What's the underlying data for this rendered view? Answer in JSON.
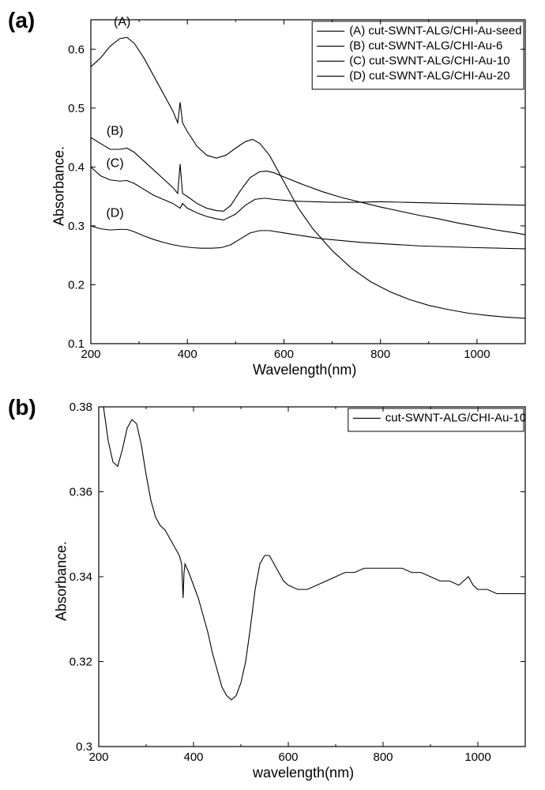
{
  "panel_a": {
    "label": "(a)",
    "type": "line",
    "xlabel": "Wavelength(nm)",
    "ylabel": "Absorbance.",
    "xlim": [
      200,
      1100
    ],
    "ylim": [
      0.1,
      0.65
    ],
    "xticks": [
      200,
      400,
      600,
      800,
      1000
    ],
    "yticks": [
      0.1,
      0.2,
      0.3,
      0.4,
      0.5,
      0.6
    ],
    "background_color": "#ffffff",
    "line_color": "#000000",
    "line_width": 1.1,
    "legend": {
      "position": "top-right",
      "items": [
        "(A) cut-SWNT-ALG/CHI-Au-seed",
        "(B) cut-SWNT-ALG/CHI-Au-6",
        "(C) cut-SWNT-ALG/CHI-Au-10",
        "(D) cut-SWNT-ALG/CHI-Au-20"
      ]
    },
    "series": [
      {
        "label": "(A)",
        "label_x": 265,
        "label_y": 0.64,
        "data": [
          [
            200,
            0.57
          ],
          [
            220,
            0.585
          ],
          [
            240,
            0.605
          ],
          [
            260,
            0.618
          ],
          [
            275,
            0.62
          ],
          [
            290,
            0.61
          ],
          [
            310,
            0.585
          ],
          [
            330,
            0.555
          ],
          [
            350,
            0.525
          ],
          [
            370,
            0.495
          ],
          [
            380,
            0.475
          ],
          [
            385,
            0.51
          ],
          [
            390,
            0.475
          ],
          [
            400,
            0.46
          ],
          [
            420,
            0.435
          ],
          [
            440,
            0.42
          ],
          [
            460,
            0.415
          ],
          [
            480,
            0.42
          ],
          [
            500,
            0.432
          ],
          [
            520,
            0.443
          ],
          [
            535,
            0.447
          ],
          [
            550,
            0.44
          ],
          [
            570,
            0.42
          ],
          [
            600,
            0.375
          ],
          [
            630,
            0.33
          ],
          [
            660,
            0.295
          ],
          [
            700,
            0.258
          ],
          [
            740,
            0.228
          ],
          [
            780,
            0.205
          ],
          [
            820,
            0.188
          ],
          [
            860,
            0.175
          ],
          [
            900,
            0.165
          ],
          [
            940,
            0.158
          ],
          [
            980,
            0.152
          ],
          [
            1020,
            0.148
          ],
          [
            1060,
            0.145
          ],
          [
            1100,
            0.143
          ]
        ]
      },
      {
        "label": "(B)",
        "label_x": 250,
        "label_y": 0.455,
        "data": [
          [
            200,
            0.45
          ],
          [
            220,
            0.44
          ],
          [
            240,
            0.43
          ],
          [
            260,
            0.43
          ],
          [
            275,
            0.432
          ],
          [
            290,
            0.425
          ],
          [
            310,
            0.41
          ],
          [
            330,
            0.395
          ],
          [
            350,
            0.38
          ],
          [
            370,
            0.365
          ],
          [
            380,
            0.355
          ],
          [
            385,
            0.405
          ],
          [
            390,
            0.355
          ],
          [
            400,
            0.35
          ],
          [
            420,
            0.338
          ],
          [
            440,
            0.33
          ],
          [
            460,
            0.326
          ],
          [
            475,
            0.325
          ],
          [
            490,
            0.335
          ],
          [
            510,
            0.36
          ],
          [
            530,
            0.382
          ],
          [
            550,
            0.392
          ],
          [
            565,
            0.393
          ],
          [
            580,
            0.39
          ],
          [
            600,
            0.383
          ],
          [
            640,
            0.37
          ],
          [
            680,
            0.358
          ],
          [
            720,
            0.348
          ],
          [
            760,
            0.34
          ],
          [
            800,
            0.332
          ],
          [
            840,
            0.325
          ],
          [
            880,
            0.318
          ],
          [
            920,
            0.312
          ],
          [
            960,
            0.305
          ],
          [
            1000,
            0.299
          ],
          [
            1040,
            0.293
          ],
          [
            1080,
            0.288
          ],
          [
            1100,
            0.285
          ]
        ]
      },
      {
        "label": "(C)",
        "label_x": 250,
        "label_y": 0.4,
        "data": [
          [
            200,
            0.4
          ],
          [
            220,
            0.385
          ],
          [
            240,
            0.378
          ],
          [
            260,
            0.376
          ],
          [
            275,
            0.377
          ],
          [
            290,
            0.372
          ],
          [
            310,
            0.362
          ],
          [
            330,
            0.352
          ],
          [
            350,
            0.345
          ],
          [
            370,
            0.338
          ],
          [
            385,
            0.33
          ],
          [
            390,
            0.338
          ],
          [
            400,
            0.33
          ],
          [
            420,
            0.322
          ],
          [
            440,
            0.316
          ],
          [
            460,
            0.312
          ],
          [
            475,
            0.31
          ],
          [
            500,
            0.32
          ],
          [
            520,
            0.335
          ],
          [
            540,
            0.345
          ],
          [
            560,
            0.347
          ],
          [
            580,
            0.345
          ],
          [
            620,
            0.342
          ],
          [
            660,
            0.341
          ],
          [
            700,
            0.34
          ],
          [
            750,
            0.34
          ],
          [
            800,
            0.341
          ],
          [
            850,
            0.34
          ],
          [
            900,
            0.339
          ],
          [
            950,
            0.338
          ],
          [
            1000,
            0.337
          ],
          [
            1050,
            0.336
          ],
          [
            1100,
            0.335
          ]
        ]
      },
      {
        "label": "(D)",
        "label_x": 250,
        "label_y": 0.315,
        "data": [
          [
            200,
            0.3
          ],
          [
            220,
            0.295
          ],
          [
            240,
            0.293
          ],
          [
            260,
            0.294
          ],
          [
            275,
            0.294
          ],
          [
            290,
            0.29
          ],
          [
            310,
            0.283
          ],
          [
            330,
            0.277
          ],
          [
            350,
            0.272
          ],
          [
            370,
            0.268
          ],
          [
            390,
            0.265
          ],
          [
            410,
            0.263
          ],
          [
            430,
            0.262
          ],
          [
            450,
            0.262
          ],
          [
            470,
            0.263
          ],
          [
            490,
            0.268
          ],
          [
            510,
            0.278
          ],
          [
            530,
            0.288
          ],
          [
            550,
            0.292
          ],
          [
            570,
            0.292
          ],
          [
            600,
            0.288
          ],
          [
            640,
            0.283
          ],
          [
            680,
            0.278
          ],
          [
            720,
            0.275
          ],
          [
            760,
            0.272
          ],
          [
            800,
            0.27
          ],
          [
            840,
            0.268
          ],
          [
            880,
            0.266
          ],
          [
            920,
            0.265
          ],
          [
            960,
            0.264
          ],
          [
            1000,
            0.263
          ],
          [
            1050,
            0.262
          ],
          [
            1100,
            0.261
          ]
        ]
      }
    ]
  },
  "panel_b": {
    "label": "(b)",
    "type": "line",
    "xlabel": "wavelength(nm)",
    "ylabel": "Absorbance.",
    "xlim": [
      200,
      1100
    ],
    "ylim": [
      0.3,
      0.38
    ],
    "xticks": [
      200,
      400,
      600,
      800,
      1000
    ],
    "yticks": [
      0.3,
      0.32,
      0.34,
      0.36,
      0.38
    ],
    "background_color": "#ffffff",
    "line_color": "#000000",
    "line_width": 1.1,
    "legend": {
      "position": "top-right",
      "items": [
        "cut-SWNT-ALG/CHI-Au-10"
      ]
    },
    "series": [
      {
        "data": [
          [
            200,
            0.4
          ],
          [
            210,
            0.38
          ],
          [
            220,
            0.372
          ],
          [
            230,
            0.367
          ],
          [
            240,
            0.366
          ],
          [
            250,
            0.37
          ],
          [
            260,
            0.375
          ],
          [
            270,
            0.377
          ],
          [
            280,
            0.376
          ],
          [
            290,
            0.371
          ],
          [
            300,
            0.364
          ],
          [
            310,
            0.358
          ],
          [
            320,
            0.354
          ],
          [
            330,
            0.352
          ],
          [
            340,
            0.351
          ],
          [
            345,
            0.35
          ],
          [
            350,
            0.349
          ],
          [
            360,
            0.347
          ],
          [
            370,
            0.345
          ],
          [
            375,
            0.343
          ],
          [
            378,
            0.335
          ],
          [
            380,
            0.341
          ],
          [
            382,
            0.343
          ],
          [
            390,
            0.341
          ],
          [
            400,
            0.338
          ],
          [
            410,
            0.335
          ],
          [
            420,
            0.331
          ],
          [
            430,
            0.327
          ],
          [
            440,
            0.322
          ],
          [
            450,
            0.318
          ],
          [
            460,
            0.314
          ],
          [
            470,
            0.312
          ],
          [
            480,
            0.311
          ],
          [
            490,
            0.312
          ],
          [
            500,
            0.315
          ],
          [
            510,
            0.32
          ],
          [
            520,
            0.328
          ],
          [
            530,
            0.337
          ],
          [
            540,
            0.343
          ],
          [
            550,
            0.345
          ],
          [
            560,
            0.345
          ],
          [
            570,
            0.343
          ],
          [
            580,
            0.341
          ],
          [
            590,
            0.339
          ],
          [
            600,
            0.338
          ],
          [
            620,
            0.337
          ],
          [
            640,
            0.337
          ],
          [
            660,
            0.338
          ],
          [
            680,
            0.339
          ],
          [
            700,
            0.34
          ],
          [
            720,
            0.341
          ],
          [
            740,
            0.341
          ],
          [
            760,
            0.342
          ],
          [
            780,
            0.342
          ],
          [
            800,
            0.342
          ],
          [
            820,
            0.342
          ],
          [
            840,
            0.342
          ],
          [
            860,
            0.341
          ],
          [
            880,
            0.341
          ],
          [
            900,
            0.34
          ],
          [
            920,
            0.339
          ],
          [
            940,
            0.339
          ],
          [
            960,
            0.338
          ],
          [
            970,
            0.339
          ],
          [
            980,
            0.34
          ],
          [
            990,
            0.338
          ],
          [
            1000,
            0.337
          ],
          [
            1020,
            0.337
          ],
          [
            1040,
            0.336
          ],
          [
            1060,
            0.336
          ],
          [
            1080,
            0.336
          ],
          [
            1100,
            0.336
          ]
        ]
      }
    ]
  }
}
